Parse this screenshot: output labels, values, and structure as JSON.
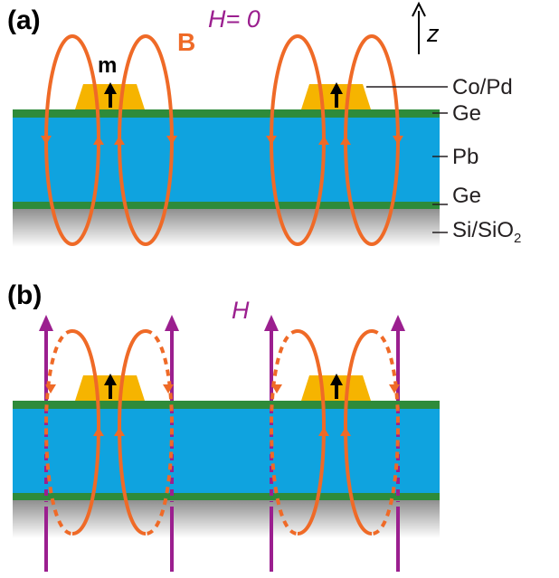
{
  "panels": {
    "a": {
      "label": "(a)",
      "field_label": "H= 0"
    },
    "b": {
      "label": "(b)",
      "field_label": "H"
    }
  },
  "labels": {
    "b_field": "B",
    "moment": "m",
    "axis": "z",
    "co_pd": "Co/Pd",
    "ge_top": "Ge",
    "pb": "Pb",
    "ge_bottom": "Ge",
    "substrate_main": "Si/SiO",
    "substrate_sub": "2"
  },
  "colors": {
    "ge": "#2e8b3a",
    "pb": "#0fa3df",
    "co_pd": "#f6b400",
    "field_loop": "#ef6a27",
    "applied_field": "#9b1f8f",
    "moment_arrow": "#000000",
    "substrate": "#9a9a9a"
  }
}
